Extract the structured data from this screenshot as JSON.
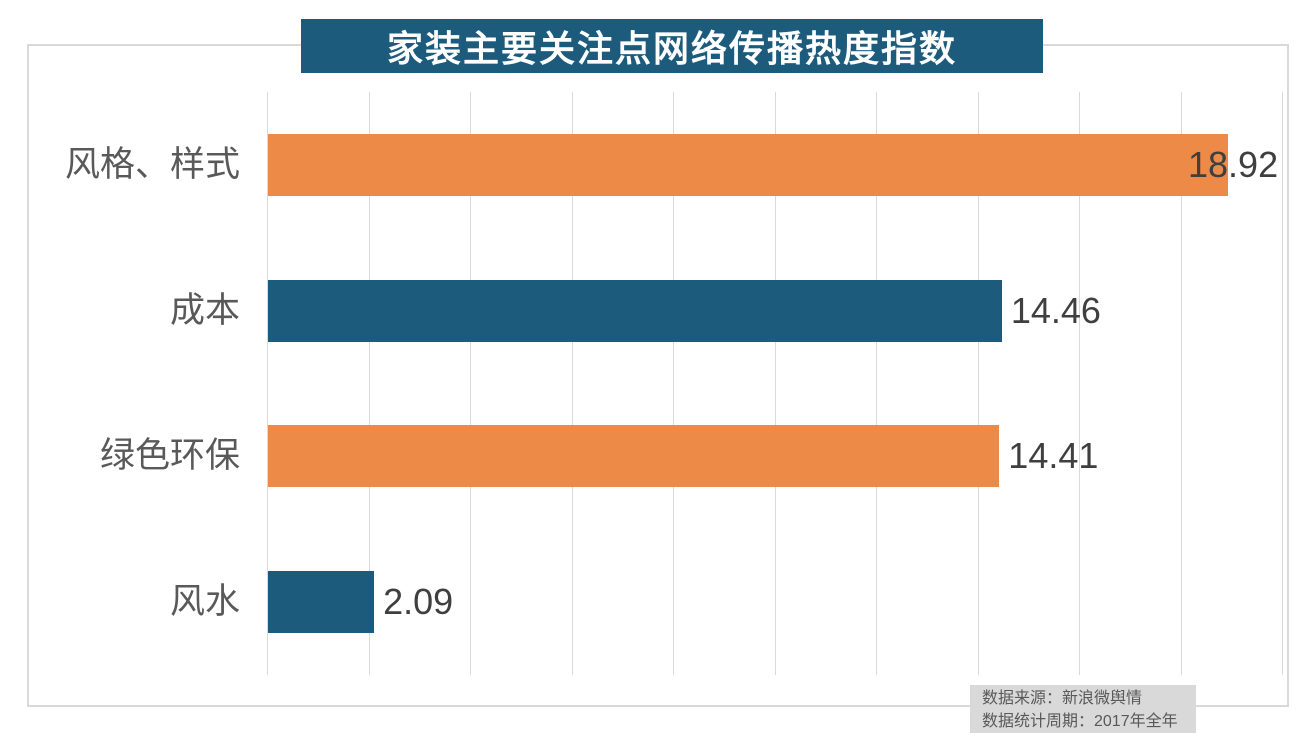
{
  "title": {
    "text": "家装主要关注点网络传播热度指数"
  },
  "chart_data": {
    "type": "bar",
    "orientation": "horizontal",
    "title": "家装主要关注点网络传播热度指数",
    "categories": [
      "风格、样式",
      "成本",
      "绿色环保",
      "风水"
    ],
    "values": [
      18.92,
      14.46,
      14.41,
      2.09
    ],
    "value_labels": [
      "18.92",
      "14.46",
      "14.41",
      "2.09"
    ],
    "bar_colors": [
      "#ED8A47",
      "#1D5B7C",
      "#ED8A47",
      "#1D5B7C"
    ],
    "xlim": [
      0,
      20
    ],
    "grid_step": 2,
    "grid": "vertical gridlines only, no axis tick labels",
    "legend": "none"
  },
  "source_note": {
    "line1": "数据来源：新浪微舆情",
    "line2": "数据统计周期：2017年全年"
  },
  "colors": {
    "accent_orange": "#ED8A47",
    "accent_teal": "#1D5B7C",
    "gridline": "#D9D9D9",
    "outer_border": "#D9D9D9",
    "category_label_text": "#595959",
    "value_label_text": "#3F3F3F",
    "title_bg": "#1D5B7C",
    "title_text": "#FFFFFF",
    "source_bg": "#D9D9D9",
    "source_text": "#595959"
  }
}
